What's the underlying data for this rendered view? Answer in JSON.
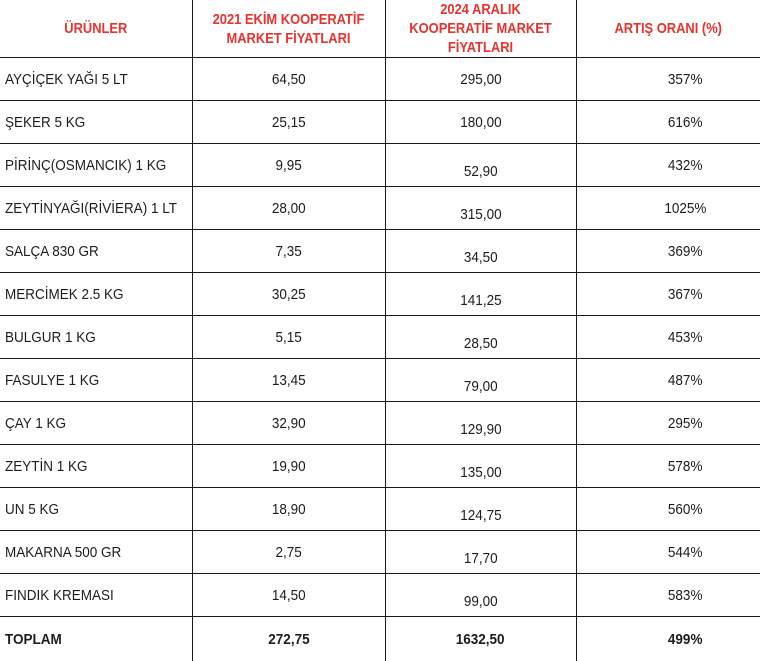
{
  "table": {
    "headers": [
      "ÜRÜNLER",
      "2021 EKİM KOOPERATİF MARKET FİYATLARI",
      "2024 ARALIK KOOPERATİF MARKET FİYATLARI",
      "ARTIŞ ORANI (%)"
    ],
    "rows": [
      [
        "AYÇİÇEK YAĞI 5 LT",
        "64,50",
        "295,00",
        "357%"
      ],
      [
        "ŞEKER 5 KG",
        "25,15",
        "180,00",
        "616%"
      ],
      [
        "PİRİNÇ(OSMANCIK) 1 KG",
        "9,95",
        "52,90",
        "432%"
      ],
      [
        "ZEYTİNYAĞI(RİVİERA) 1 LT",
        "28,00",
        "315,00",
        "1025%"
      ],
      [
        "SALÇA 830 GR",
        "7,35",
        "34,50",
        "369%"
      ],
      [
        "MERCİMEK 2.5 KG",
        "30,25",
        "141,25",
        "367%"
      ],
      [
        "BULGUR 1 KG",
        "5,15",
        "28,50",
        "453%"
      ],
      [
        "FASULYE 1 KG",
        "13,45",
        "79,00",
        "487%"
      ],
      [
        "ÇAY 1 KG",
        "32,90",
        "129,90",
        "295%"
      ],
      [
        "ZEYTİN 1 KG",
        "19,90",
        "135,00",
        "578%"
      ],
      [
        "UN 5 KG",
        "18,90",
        "124,75",
        "560%"
      ],
      [
        "MAKARNA 500 GR",
        "2,75",
        "17,70",
        "544%"
      ],
      [
        "FINDIK KREMASI",
        "14,50",
        "99,00",
        "583%"
      ]
    ],
    "total": [
      "TOPLAM",
      "272,75",
      "1632,50",
      "499%"
    ]
  },
  "colors": {
    "header_text": "#e8322e",
    "body_text": "#1d1d1d",
    "grid": "#1a1a1a"
  }
}
